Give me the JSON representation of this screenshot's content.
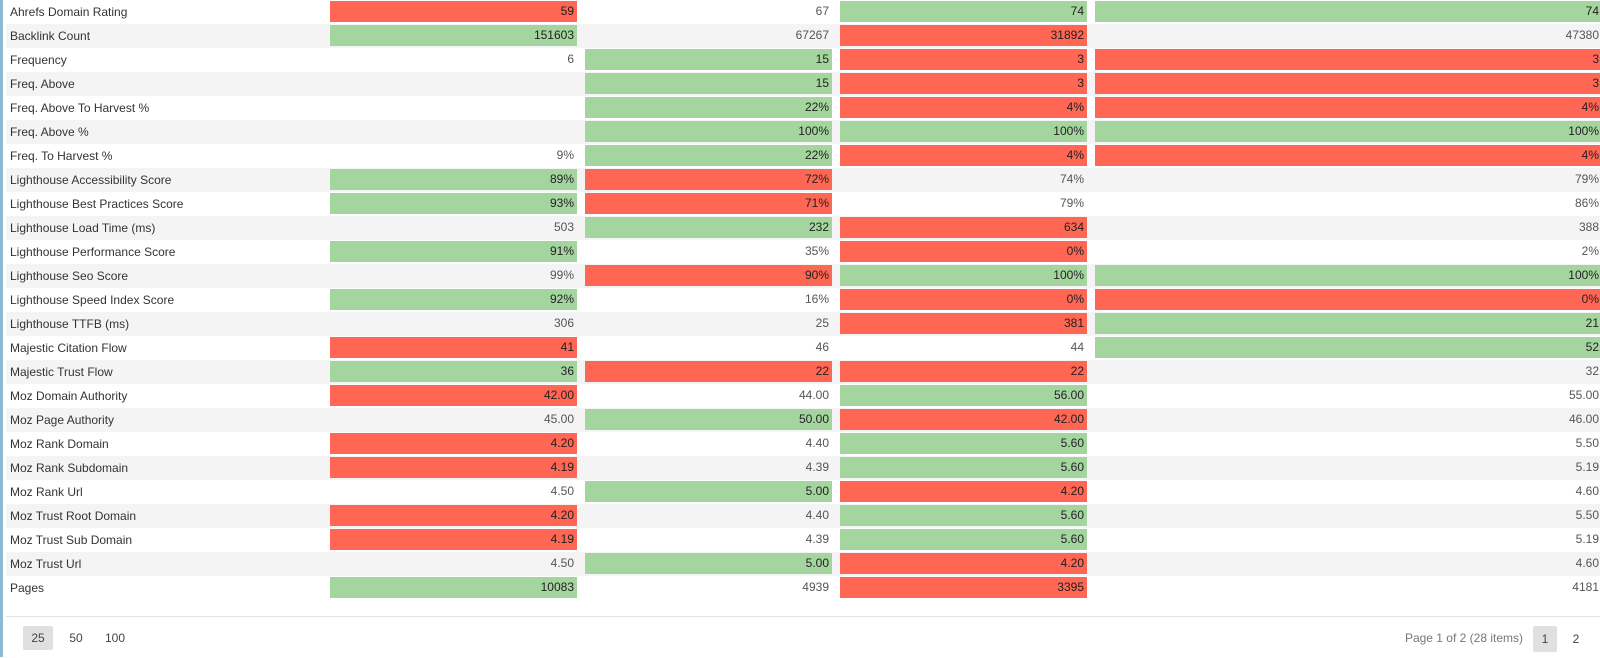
{
  "table": {
    "rows": [
      {
        "name": "Ahrefs Domain Rating",
        "cells": [
          {
            "v": "59",
            "s": "bad"
          },
          {
            "v": "67",
            "s": ""
          },
          {
            "v": "74",
            "s": "good"
          },
          {
            "v": "74",
            "s": "good"
          }
        ]
      },
      {
        "name": "Backlink Count",
        "cells": [
          {
            "v": "151603",
            "s": "good"
          },
          {
            "v": "67267",
            "s": ""
          },
          {
            "v": "31892",
            "s": "bad"
          },
          {
            "v": "47380",
            "s": ""
          }
        ]
      },
      {
        "name": "Frequency",
        "cells": [
          {
            "v": "6",
            "s": ""
          },
          {
            "v": "15",
            "s": "good"
          },
          {
            "v": "3",
            "s": "bad"
          },
          {
            "v": "3",
            "s": "bad"
          }
        ]
      },
      {
        "name": "Freq. Above",
        "cells": [
          {
            "v": "",
            "s": ""
          },
          {
            "v": "15",
            "s": "good"
          },
          {
            "v": "3",
            "s": "bad"
          },
          {
            "v": "3",
            "s": "bad"
          }
        ]
      },
      {
        "name": "Freq. Above To Harvest %",
        "cells": [
          {
            "v": "",
            "s": ""
          },
          {
            "v": "22%",
            "s": "good"
          },
          {
            "v": "4%",
            "s": "bad"
          },
          {
            "v": "4%",
            "s": "bad"
          }
        ]
      },
      {
        "name": "Freq. Above %",
        "cells": [
          {
            "v": "",
            "s": ""
          },
          {
            "v": "100%",
            "s": "good"
          },
          {
            "v": "100%",
            "s": "good"
          },
          {
            "v": "100%",
            "s": "good"
          }
        ]
      },
      {
        "name": "Freq. To Harvest %",
        "cells": [
          {
            "v": "9%",
            "s": ""
          },
          {
            "v": "22%",
            "s": "good"
          },
          {
            "v": "4%",
            "s": "bad"
          },
          {
            "v": "4%",
            "s": "bad"
          }
        ]
      },
      {
        "name": "Lighthouse Accessibility Score",
        "cells": [
          {
            "v": "89%",
            "s": "good"
          },
          {
            "v": "72%",
            "s": "bad"
          },
          {
            "v": "74%",
            "s": ""
          },
          {
            "v": "79%",
            "s": ""
          }
        ]
      },
      {
        "name": "Lighthouse Best Practices Score",
        "cells": [
          {
            "v": "93%",
            "s": "good"
          },
          {
            "v": "71%",
            "s": "bad"
          },
          {
            "v": "79%",
            "s": ""
          },
          {
            "v": "86%",
            "s": ""
          }
        ]
      },
      {
        "name": "Lighthouse Load Time (ms)",
        "cells": [
          {
            "v": "503",
            "s": ""
          },
          {
            "v": "232",
            "s": "good"
          },
          {
            "v": "634",
            "s": "bad"
          },
          {
            "v": "388",
            "s": ""
          }
        ]
      },
      {
        "name": "Lighthouse Performance Score",
        "cells": [
          {
            "v": "91%",
            "s": "good"
          },
          {
            "v": "35%",
            "s": ""
          },
          {
            "v": "0%",
            "s": "bad"
          },
          {
            "v": "2%",
            "s": ""
          }
        ]
      },
      {
        "name": "Lighthouse Seo Score",
        "cells": [
          {
            "v": "99%",
            "s": ""
          },
          {
            "v": "90%",
            "s": "bad"
          },
          {
            "v": "100%",
            "s": "good"
          },
          {
            "v": "100%",
            "s": "good"
          }
        ]
      },
      {
        "name": "Lighthouse Speed Index Score",
        "cells": [
          {
            "v": "92%",
            "s": "good"
          },
          {
            "v": "16%",
            "s": ""
          },
          {
            "v": "0%",
            "s": "bad"
          },
          {
            "v": "0%",
            "s": "bad"
          }
        ]
      },
      {
        "name": "Lighthouse TTFB (ms)",
        "cells": [
          {
            "v": "306",
            "s": ""
          },
          {
            "v": "25",
            "s": ""
          },
          {
            "v": "381",
            "s": "bad"
          },
          {
            "v": "21",
            "s": "good"
          }
        ]
      },
      {
        "name": "Majestic Citation Flow",
        "cells": [
          {
            "v": "41",
            "s": "bad"
          },
          {
            "v": "46",
            "s": ""
          },
          {
            "v": "44",
            "s": ""
          },
          {
            "v": "52",
            "s": "good"
          }
        ]
      },
      {
        "name": "Majestic Trust Flow",
        "cells": [
          {
            "v": "36",
            "s": "good"
          },
          {
            "v": "22",
            "s": "bad"
          },
          {
            "v": "22",
            "s": "bad"
          },
          {
            "v": "32",
            "s": ""
          }
        ]
      },
      {
        "name": "Moz Domain Authority",
        "cells": [
          {
            "v": "42.00",
            "s": "bad"
          },
          {
            "v": "44.00",
            "s": ""
          },
          {
            "v": "56.00",
            "s": "good"
          },
          {
            "v": "55.00",
            "s": ""
          }
        ]
      },
      {
        "name": "Moz Page Authority",
        "cells": [
          {
            "v": "45.00",
            "s": ""
          },
          {
            "v": "50.00",
            "s": "good"
          },
          {
            "v": "42.00",
            "s": "bad"
          },
          {
            "v": "46.00",
            "s": ""
          }
        ]
      },
      {
        "name": "Moz Rank Domain",
        "cells": [
          {
            "v": "4.20",
            "s": "bad"
          },
          {
            "v": "4.40",
            "s": ""
          },
          {
            "v": "5.60",
            "s": "good"
          },
          {
            "v": "5.50",
            "s": ""
          }
        ]
      },
      {
        "name": "Moz Rank Subdomain",
        "cells": [
          {
            "v": "4.19",
            "s": "bad"
          },
          {
            "v": "4.39",
            "s": ""
          },
          {
            "v": "5.60",
            "s": "good"
          },
          {
            "v": "5.19",
            "s": ""
          }
        ]
      },
      {
        "name": "Moz Rank Url",
        "cells": [
          {
            "v": "4.50",
            "s": ""
          },
          {
            "v": "5.00",
            "s": "good"
          },
          {
            "v": "4.20",
            "s": "bad"
          },
          {
            "v": "4.60",
            "s": ""
          }
        ]
      },
      {
        "name": "Moz Trust Root Domain",
        "cells": [
          {
            "v": "4.20",
            "s": "bad"
          },
          {
            "v": "4.40",
            "s": ""
          },
          {
            "v": "5.60",
            "s": "good"
          },
          {
            "v": "5.50",
            "s": ""
          }
        ]
      },
      {
        "name": "Moz Trust Sub Domain",
        "cells": [
          {
            "v": "4.19",
            "s": "bad"
          },
          {
            "v": "4.39",
            "s": ""
          },
          {
            "v": "5.60",
            "s": "good"
          },
          {
            "v": "5.19",
            "s": ""
          }
        ]
      },
      {
        "name": "Moz Trust Url",
        "cells": [
          {
            "v": "4.50",
            "s": ""
          },
          {
            "v": "5.00",
            "s": "good"
          },
          {
            "v": "4.20",
            "s": "bad"
          },
          {
            "v": "4.60",
            "s": ""
          }
        ]
      },
      {
        "name": "Pages",
        "cells": [
          {
            "v": "10083",
            "s": "good"
          },
          {
            "v": "4939",
            "s": ""
          },
          {
            "v": "3395",
            "s": "bad"
          },
          {
            "v": "4181",
            "s": ""
          }
        ]
      }
    ]
  },
  "colors": {
    "good": "#a5d59e",
    "bad": "#ff6654",
    "stripe": "#f4f4f4",
    "accent_border": "#8fb9d2"
  },
  "pager": {
    "page_sizes": [
      "25",
      "50",
      "100"
    ],
    "active_page_size": "25",
    "info": "Page 1 of 2 (28 items)",
    "pages": [
      "1",
      "2"
    ],
    "active_page": "1"
  }
}
